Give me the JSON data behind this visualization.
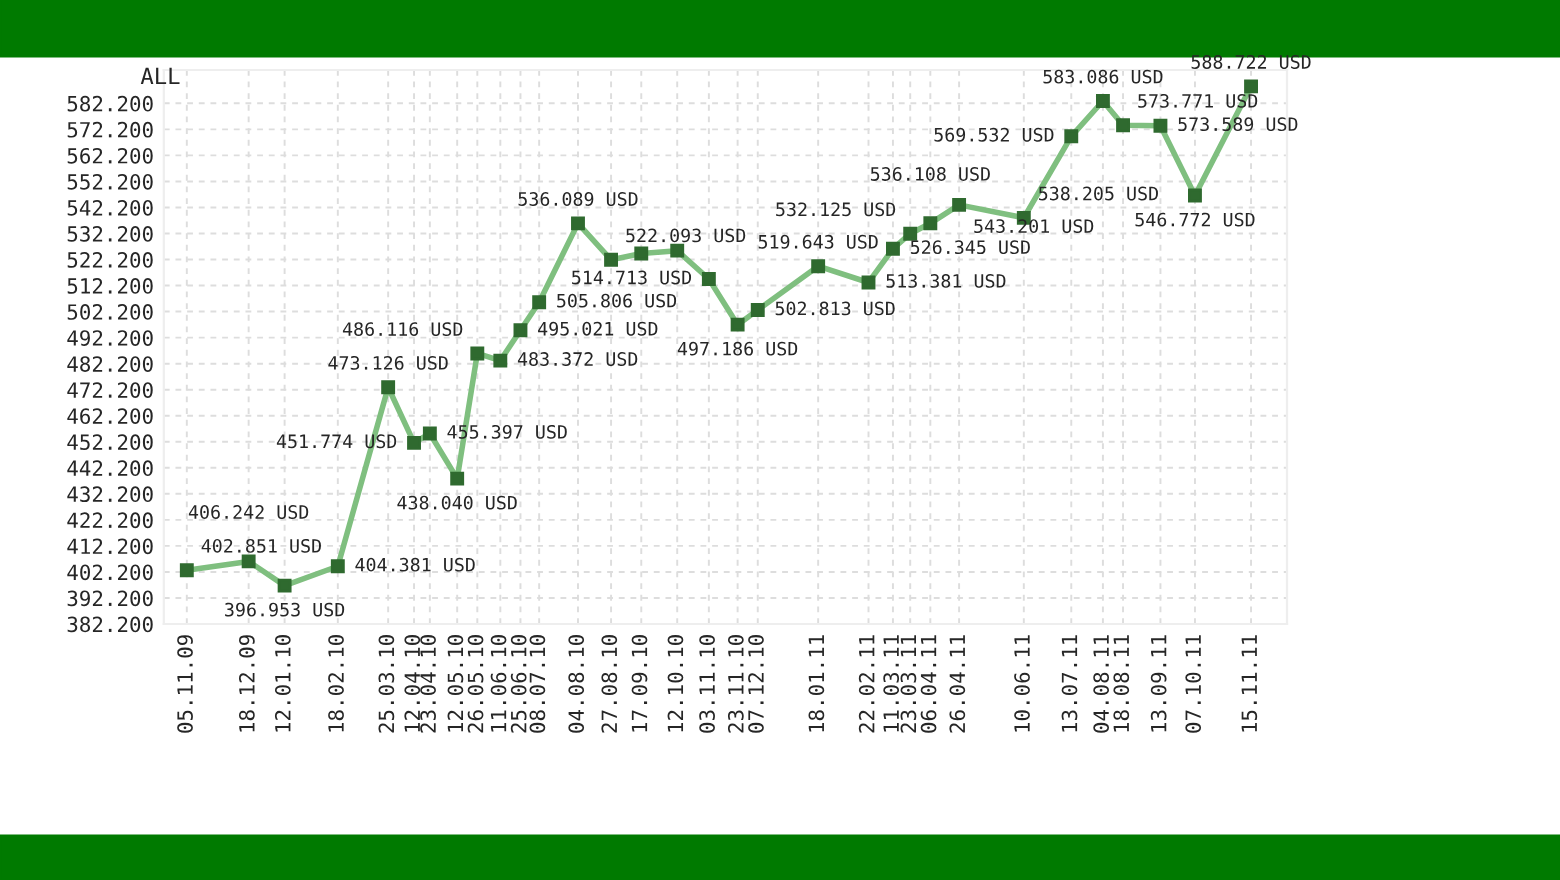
{
  "chart_data": {
    "type": "line",
    "title": "ALL",
    "x": [
      "2009-11-05",
      "2009-12-18",
      "2010-01-12",
      "2010-02-18",
      "2010-03-25",
      "2010-04-12",
      "2010-04-23",
      "2010-05-12",
      "2010-05-26",
      "2010-06-11",
      "2010-06-25",
      "2010-07-08",
      "2010-08-04",
      "2010-08-27",
      "2010-09-17",
      "2010-10-12",
      "2010-11-03",
      "2010-11-23",
      "2010-12-07",
      "2011-01-18",
      "2011-02-22",
      "2011-03-11",
      "2011-03-23",
      "2011-04-06",
      "2011-04-26",
      "2011-06-10",
      "2011-07-13",
      "2011-08-04",
      "2011-08-18",
      "2011-09-13",
      "2011-10-07",
      "2011-11-15"
    ],
    "xticks": [
      {
        "value": "2009-11-05",
        "label": "05.11.09"
      },
      {
        "value": "2009-12-18",
        "label": "18.12.09"
      },
      {
        "value": "2010-01-12",
        "label": "12.01.10"
      },
      {
        "value": "2010-02-18",
        "label": "18.02.10"
      },
      {
        "value": "2010-03-25",
        "label": "25.03.10"
      },
      {
        "value": "2010-04-12",
        "label": "12.04.10"
      },
      {
        "value": "2010-04-23",
        "label": "23.04.10"
      },
      {
        "value": "2010-05-12",
        "label": "12.05.10"
      },
      {
        "value": "2010-05-26",
        "label": "26.05.10"
      },
      {
        "value": "2010-06-11",
        "label": "11.06.10"
      },
      {
        "value": "2010-06-25",
        "label": "25.06.10"
      },
      {
        "value": "2010-07-08",
        "label": "08.07.10"
      },
      {
        "value": "2010-08-04",
        "label": "04.08.10"
      },
      {
        "value": "2010-08-27",
        "label": "27.08.10"
      },
      {
        "value": "2010-09-17",
        "label": "17.09.10"
      },
      {
        "value": "2010-10-12",
        "label": "12.10.10"
      },
      {
        "value": "2010-11-03",
        "label": "03.11.10"
      },
      {
        "value": "2010-11-23",
        "label": "23.11.10"
      },
      {
        "value": "2010-12-07",
        "label": "07.12.10"
      },
      {
        "value": "2011-01-18",
        "label": "18.01.11"
      },
      {
        "value": "2011-02-22",
        "label": "22.02.11"
      },
      {
        "value": "2011-03-11",
        "label": "11.03.11"
      },
      {
        "value": "2011-03-23",
        "label": "23.03.11"
      },
      {
        "value": "2011-04-06",
        "label": "06.04.11"
      },
      {
        "value": "2011-04-26",
        "label": "26.04.11"
      },
      {
        "value": "2011-06-10",
        "label": "10.06.11"
      },
      {
        "value": "2011-07-13",
        "label": "13.07.11"
      },
      {
        "value": "2011-08-04",
        "label": "04.08.11"
      },
      {
        "value": "2011-08-18",
        "label": "18.08.11"
      },
      {
        "value": "2011-09-13",
        "label": "13.09.11"
      },
      {
        "value": "2011-10-07",
        "label": "07.10.11"
      },
      {
        "value": "2011-11-15",
        "label": "15.11.11"
      }
    ],
    "xlim": [
      "2009-10-20",
      "2011-12-10"
    ],
    "ylim": [
      382.2,
      595
    ],
    "yticks": [
      {
        "value": 382.2,
        "label": "382.200"
      },
      {
        "value": 392.2,
        "label": "392.200"
      },
      {
        "value": 402.2,
        "label": "402.200"
      },
      {
        "value": 412.2,
        "label": "412.200"
      },
      {
        "value": 422.2,
        "label": "422.200"
      },
      {
        "value": 432.2,
        "label": "432.200"
      },
      {
        "value": 442.2,
        "label": "442.200"
      },
      {
        "value": 452.2,
        "label": "452.200"
      },
      {
        "value": 462.2,
        "label": "462.200"
      },
      {
        "value": 472.2,
        "label": "472.200"
      },
      {
        "value": 482.2,
        "label": "482.200"
      },
      {
        "value": 492.2,
        "label": "492.200"
      },
      {
        "value": 502.2,
        "label": "502.200"
      },
      {
        "value": 512.2,
        "label": "512.200"
      },
      {
        "value": 522.2,
        "label": "522.200"
      },
      {
        "value": 532.2,
        "label": "532.200"
      },
      {
        "value": 542.2,
        "label": "542.200"
      },
      {
        "value": 552.2,
        "label": "552.200"
      },
      {
        "value": 562.2,
        "label": "562.200"
      },
      {
        "value": 572.2,
        "label": "572.200"
      },
      {
        "value": 582.2,
        "label": "582.200"
      }
    ],
    "series": [
      {
        "color": "#7fbf7f",
        "values": [
          402.851,
          406.242,
          396.953,
          404.381,
          473.126,
          451.774,
          455.397,
          438.04,
          486.116,
          483.372,
          495.021,
          505.806,
          536.089,
          522.093,
          524.5,
          525.6,
          514.713,
          497.186,
          502.813,
          519.643,
          513.381,
          526.345,
          532.125,
          536.108,
          543.201,
          538.205,
          569.532,
          583.086,
          573.771,
          573.589,
          546.772,
          588.722
        ],
        "value_labels": [
          "402.851 USD",
          "406.242 USD",
          "396.953 USD",
          "404.381 USD",
          "473.126 USD",
          "451.774 USD",
          "455.397 USD",
          "438.040 USD",
          "486.116 USD",
          "483.372 USD",
          "495.021 USD",
          "505.806 USD",
          "536.089 USD",
          "522.093 USD",
          null,
          null,
          "514.713 USD",
          "497.186 USD",
          "502.813 USD",
          "519.643 USD",
          "513.381 USD",
          "526.345 USD",
          "532.125 USD",
          "536.108 USD",
          "543.201 USD",
          "538.205 USD",
          "569.532 USD",
          "583.086 USD",
          "573.771 USD",
          "573.589 USD",
          "546.772 USD",
          "588.722 USD"
        ]
      }
    ],
    "marker": "square",
    "line_style": "solid",
    "grid": true,
    "legend": false
  }
}
